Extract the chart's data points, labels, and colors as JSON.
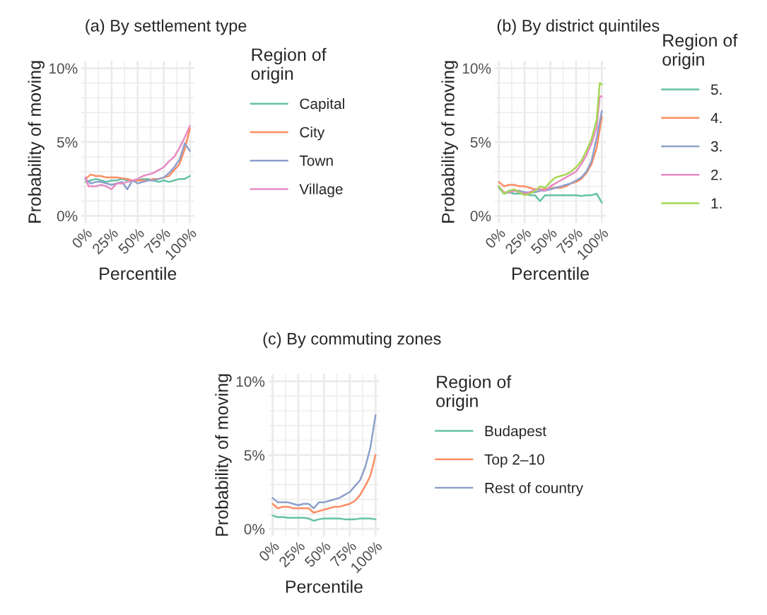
{
  "chart_data": [
    {
      "type": "line",
      "title": "(a) By settlement type",
      "xlabel": "Percentile",
      "ylabel": "Probability of moving",
      "legend_title": "Region of\norigin",
      "legend": "right",
      "grid": true,
      "xlim": [
        -4,
        104
      ],
      "ylim": [
        -0.5,
        10.5
      ],
      "xticks": [
        {
          "value": 0,
          "label": "0%"
        },
        {
          "value": 12.5,
          "label": null
        },
        {
          "value": 25,
          "label": "25%"
        },
        {
          "value": 37.5,
          "label": null
        },
        {
          "value": 50,
          "label": "50%"
        },
        {
          "value": 62.5,
          "label": null
        },
        {
          "value": 75,
          "label": "75%"
        },
        {
          "value": 87.5,
          "label": null
        },
        {
          "value": 100,
          "label": "100%"
        }
      ],
      "yticks": [
        {
          "value": 0,
          "label": "0%"
        },
        {
          "value": 1,
          "label": null
        },
        {
          "value": 2,
          "label": null
        },
        {
          "value": 3,
          "label": null
        },
        {
          "value": 4,
          "label": null
        },
        {
          "value": 5,
          "label": "5%"
        },
        {
          "value": 6,
          "label": null
        },
        {
          "value": 7,
          "label": null
        },
        {
          "value": 8,
          "label": null
        },
        {
          "value": 9,
          "label": null
        },
        {
          "value": 10,
          "label": "10%"
        }
      ],
      "series": [
        {
          "name": "Capital",
          "color": "#66c2a5",
          "x": [
            0,
            5,
            10,
            15,
            20,
            25,
            30,
            35,
            40,
            45,
            50,
            55,
            60,
            65,
            70,
            75,
            80,
            85,
            90,
            95,
            100
          ],
          "values": [
            2.3,
            2.4,
            2.5,
            2.4,
            2.3,
            2.4,
            2.4,
            2.5,
            2.4,
            2.4,
            2.4,
            2.5,
            2.5,
            2.4,
            2.3,
            2.4,
            2.3,
            2.4,
            2.5,
            2.5,
            2.7
          ]
        },
        {
          "name": "City",
          "color": "#fc8d62",
          "x": [
            0,
            5,
            10,
            15,
            20,
            25,
            30,
            35,
            40,
            45,
            50,
            55,
            60,
            65,
            70,
            75,
            80,
            85,
            90,
            95,
            100
          ],
          "values": [
            2.5,
            2.8,
            2.7,
            2.7,
            2.6,
            2.6,
            2.6,
            2.55,
            2.5,
            2.4,
            2.4,
            2.4,
            2.4,
            2.5,
            2.5,
            2.6,
            2.7,
            3.1,
            3.5,
            4.5,
            5.9
          ]
        },
        {
          "name": "Town",
          "color": "#8da0cb",
          "x": [
            0,
            5,
            10,
            15,
            20,
            25,
            30,
            35,
            40,
            45,
            50,
            55,
            60,
            65,
            70,
            75,
            80,
            85,
            90,
            95,
            100
          ],
          "values": [
            2.5,
            2.2,
            2.3,
            2.3,
            2.2,
            2.1,
            2.2,
            2.3,
            1.8,
            2.4,
            2.2,
            2.3,
            2.4,
            2.4,
            2.5,
            2.6,
            2.9,
            3.3,
            3.8,
            4.9,
            4.4
          ]
        },
        {
          "name": "Village",
          "color": "#e78ac3",
          "x": [
            0,
            3,
            10,
            15,
            20,
            25,
            30,
            35,
            40,
            45,
            50,
            55,
            60,
            65,
            70,
            75,
            80,
            85,
            90,
            95,
            100
          ],
          "values": [
            2.6,
            2.0,
            2.0,
            2.1,
            2.0,
            1.8,
            2.2,
            2.2,
            2.3,
            2.4,
            2.5,
            2.7,
            2.8,
            2.9,
            3.1,
            3.3,
            3.7,
            4.0,
            4.6,
            5.3,
            6.1
          ]
        }
      ]
    },
    {
      "type": "line",
      "title": "(b) By district quintiles",
      "xlabel": "Percentile",
      "ylabel": "Probability of moving",
      "legend_title": "Region of\norigin",
      "legend": "right",
      "grid": true,
      "xlim": [
        -4,
        104
      ],
      "ylim": [
        -0.5,
        10.5
      ],
      "xticks": [
        {
          "value": 0,
          "label": "0%"
        },
        {
          "value": 12.5,
          "label": null
        },
        {
          "value": 25,
          "label": "25%"
        },
        {
          "value": 37.5,
          "label": null
        },
        {
          "value": 50,
          "label": "50%"
        },
        {
          "value": 62.5,
          "label": null
        },
        {
          "value": 75,
          "label": "75%"
        },
        {
          "value": 87.5,
          "label": null
        },
        {
          "value": 100,
          "label": "100%"
        }
      ],
      "yticks": [
        {
          "value": 0,
          "label": "0%"
        },
        {
          "value": 1,
          "label": null
        },
        {
          "value": 2,
          "label": null
        },
        {
          "value": 3,
          "label": null
        },
        {
          "value": 4,
          "label": null
        },
        {
          "value": 5,
          "label": "5%"
        },
        {
          "value": 6,
          "label": null
        },
        {
          "value": 7,
          "label": null
        },
        {
          "value": 8,
          "label": null
        },
        {
          "value": 9,
          "label": null
        },
        {
          "value": 10,
          "label": "10%"
        }
      ],
      "series": [
        {
          "name": "5.",
          "color": "#66c2a5",
          "x": [
            0,
            5,
            10,
            15,
            20,
            25,
            30,
            35,
            40,
            45,
            50,
            55,
            60,
            65,
            70,
            75,
            80,
            85,
            90,
            95,
            100
          ],
          "values": [
            1.9,
            1.5,
            1.6,
            1.5,
            1.5,
            1.5,
            1.4,
            1.4,
            1.0,
            1.4,
            1.4,
            1.4,
            1.4,
            1.4,
            1.4,
            1.4,
            1.35,
            1.4,
            1.4,
            1.5,
            0.9
          ]
        },
        {
          "name": "4.",
          "color": "#fc8d62",
          "x": [
            0,
            5,
            10,
            15,
            20,
            25,
            30,
            35,
            40,
            45,
            50,
            55,
            60,
            65,
            70,
            75,
            80,
            85,
            90,
            95,
            100
          ],
          "values": [
            2.3,
            2.0,
            2.1,
            2.1,
            2.0,
            2.0,
            1.9,
            1.8,
            1.8,
            1.8,
            1.9,
            1.9,
            1.9,
            2.0,
            2.2,
            2.3,
            2.5,
            2.9,
            3.5,
            4.6,
            6.7
          ]
        },
        {
          "name": "3.",
          "color": "#8da0cb",
          "x": [
            0,
            5,
            10,
            15,
            20,
            25,
            30,
            35,
            40,
            45,
            50,
            55,
            60,
            65,
            70,
            75,
            80,
            85,
            90,
            95,
            100
          ],
          "values": [
            2.0,
            1.5,
            1.7,
            1.7,
            1.7,
            1.6,
            1.6,
            1.6,
            1.7,
            1.7,
            1.8,
            1.9,
            2.0,
            2.1,
            2.2,
            2.4,
            2.6,
            3.0,
            3.7,
            5.3,
            7.1
          ]
        },
        {
          "name": "2.",
          "color": "#e78ac3",
          "x": [
            0,
            5,
            10,
            15,
            20,
            25,
            30,
            35,
            40,
            45,
            50,
            55,
            60,
            65,
            70,
            75,
            80,
            85,
            90,
            95,
            98,
            100
          ],
          "values": [
            2.0,
            1.6,
            1.6,
            1.7,
            1.6,
            1.5,
            1.6,
            1.8,
            1.8,
            1.7,
            2.0,
            2.2,
            2.4,
            2.6,
            2.8,
            3.0,
            3.5,
            4.1,
            4.9,
            6.0,
            8.1,
            8.1
          ]
        },
        {
          "name": "1.",
          "color": "#a6d854",
          "x": [
            0,
            5,
            10,
            15,
            20,
            25,
            30,
            35,
            40,
            45,
            50,
            55,
            60,
            65,
            70,
            75,
            80,
            85,
            90,
            95,
            98,
            100
          ],
          "values": [
            2.0,
            1.5,
            1.7,
            1.8,
            1.6,
            1.4,
            1.5,
            1.7,
            2.0,
            1.9,
            2.3,
            2.6,
            2.7,
            2.8,
            3.0,
            3.3,
            3.7,
            4.4,
            5.2,
            6.5,
            9.0,
            8.9
          ]
        }
      ]
    },
    {
      "type": "line",
      "title": "(c) By commuting zones",
      "xlabel": "Percentile",
      "ylabel": "Probability of moving",
      "legend_title": "Region of\norigin",
      "legend": "right",
      "grid": true,
      "xlim": [
        -4,
        104
      ],
      "ylim": [
        -0.5,
        10.5
      ],
      "xticks": [
        {
          "value": 0,
          "label": "0%"
        },
        {
          "value": 12.5,
          "label": null
        },
        {
          "value": 25,
          "label": "25%"
        },
        {
          "value": 37.5,
          "label": null
        },
        {
          "value": 50,
          "label": "50%"
        },
        {
          "value": 62.5,
          "label": null
        },
        {
          "value": 75,
          "label": "75%"
        },
        {
          "value": 87.5,
          "label": null
        },
        {
          "value": 100,
          "label": "100%"
        }
      ],
      "yticks": [
        {
          "value": 0,
          "label": "0%"
        },
        {
          "value": 1,
          "label": null
        },
        {
          "value": 2,
          "label": null
        },
        {
          "value": 3,
          "label": null
        },
        {
          "value": 4,
          "label": null
        },
        {
          "value": 5,
          "label": "5%"
        },
        {
          "value": 6,
          "label": null
        },
        {
          "value": 7,
          "label": null
        },
        {
          "value": 8,
          "label": null
        },
        {
          "value": 9,
          "label": null
        },
        {
          "value": 10,
          "label": "10%"
        }
      ],
      "series": [
        {
          "name": "Budapest",
          "color": "#66c2a5",
          "x": [
            0,
            5,
            10,
            15,
            20,
            25,
            30,
            35,
            40,
            45,
            50,
            55,
            60,
            65,
            70,
            75,
            80,
            85,
            90,
            95,
            100
          ],
          "values": [
            0.9,
            0.8,
            0.8,
            0.75,
            0.75,
            0.75,
            0.75,
            0.7,
            0.55,
            0.65,
            0.7,
            0.7,
            0.7,
            0.7,
            0.65,
            0.65,
            0.65,
            0.7,
            0.7,
            0.7,
            0.65
          ]
        },
        {
          "name": "Top 2–10",
          "color": "#fc8d62",
          "x": [
            0,
            5,
            10,
            15,
            20,
            25,
            30,
            35,
            40,
            45,
            50,
            55,
            60,
            65,
            70,
            75,
            80,
            85,
            90,
            95,
            100
          ],
          "values": [
            1.7,
            1.4,
            1.5,
            1.5,
            1.4,
            1.4,
            1.4,
            1.4,
            1.1,
            1.2,
            1.3,
            1.4,
            1.5,
            1.5,
            1.6,
            1.7,
            1.9,
            2.3,
            2.9,
            3.6,
            5.0
          ]
        },
        {
          "name": "Rest of country",
          "color": "#8da0cb",
          "x": [
            0,
            5,
            10,
            15,
            20,
            25,
            30,
            35,
            40,
            45,
            50,
            55,
            60,
            65,
            70,
            75,
            80,
            85,
            90,
            95,
            100
          ],
          "values": [
            2.1,
            1.8,
            1.8,
            1.8,
            1.7,
            1.6,
            1.7,
            1.7,
            1.4,
            1.8,
            1.8,
            1.9,
            2.0,
            2.1,
            2.3,
            2.5,
            2.9,
            3.3,
            4.2,
            5.5,
            7.7
          ]
        }
      ]
    }
  ]
}
